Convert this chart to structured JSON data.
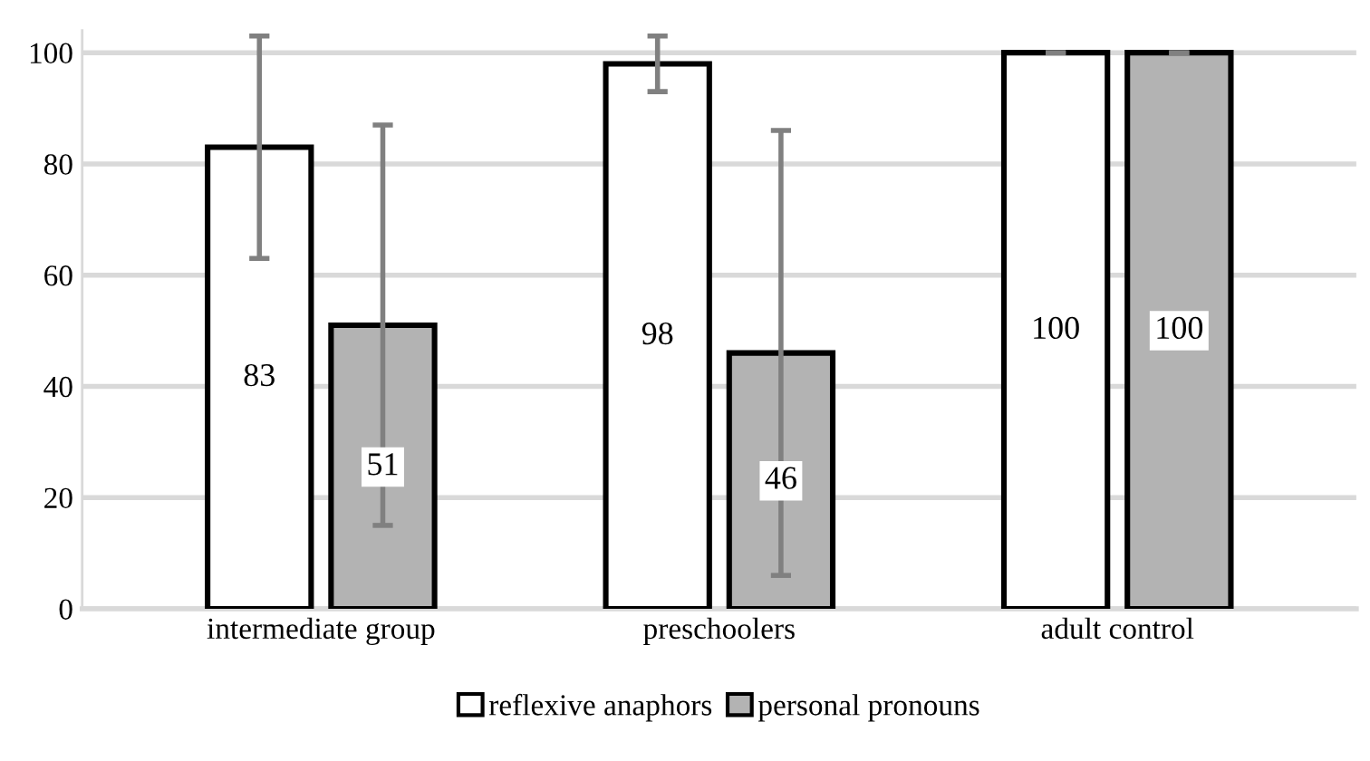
{
  "chart_data": {
    "type": "bar",
    "categories": [
      "intermediate group",
      "preschoolers",
      "adult control"
    ],
    "series": [
      {
        "name": "reflexive anaphors",
        "color": "#ffffff",
        "values": [
          83,
          98,
          100
        ],
        "errors": [
          20,
          5,
          0
        ]
      },
      {
        "name": "personal pronouns",
        "color": "#b3b3b3",
        "values": [
          51,
          46,
          100
        ],
        "errors": [
          36,
          40,
          0
        ]
      }
    ],
    "ylim": [
      0,
      104
    ],
    "yticks": [
      0,
      20,
      40,
      60,
      80,
      100
    ],
    "grid": "y",
    "legend": "bottom",
    "data_labels": true
  }
}
